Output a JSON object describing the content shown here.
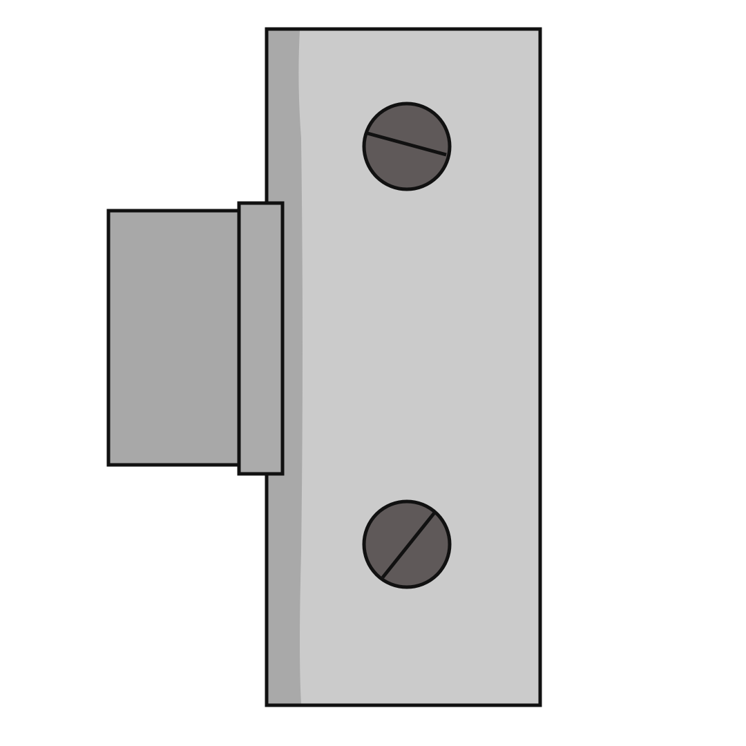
{
  "illustration": {
    "subject": "lock-bolt-with-mounting-plate",
    "colors": {
      "background": "#ffffff",
      "outline": "#111111",
      "plate_fill": "#cbcbcb",
      "plate_shadow": "#a9a9a9",
      "bolt_fill": "#a8a8a8",
      "bolt_flange_fill": "#ababab",
      "screw_fill": "#5f5959"
    },
    "parts": [
      {
        "name": "mounting-plate",
        "kind": "plate"
      },
      {
        "name": "bolt-body",
        "kind": "bolt"
      },
      {
        "name": "bolt-flange",
        "kind": "flange"
      },
      {
        "name": "screw-top",
        "kind": "slotted-screw"
      },
      {
        "name": "screw-bottom",
        "kind": "slotted-screw"
      }
    ]
  }
}
